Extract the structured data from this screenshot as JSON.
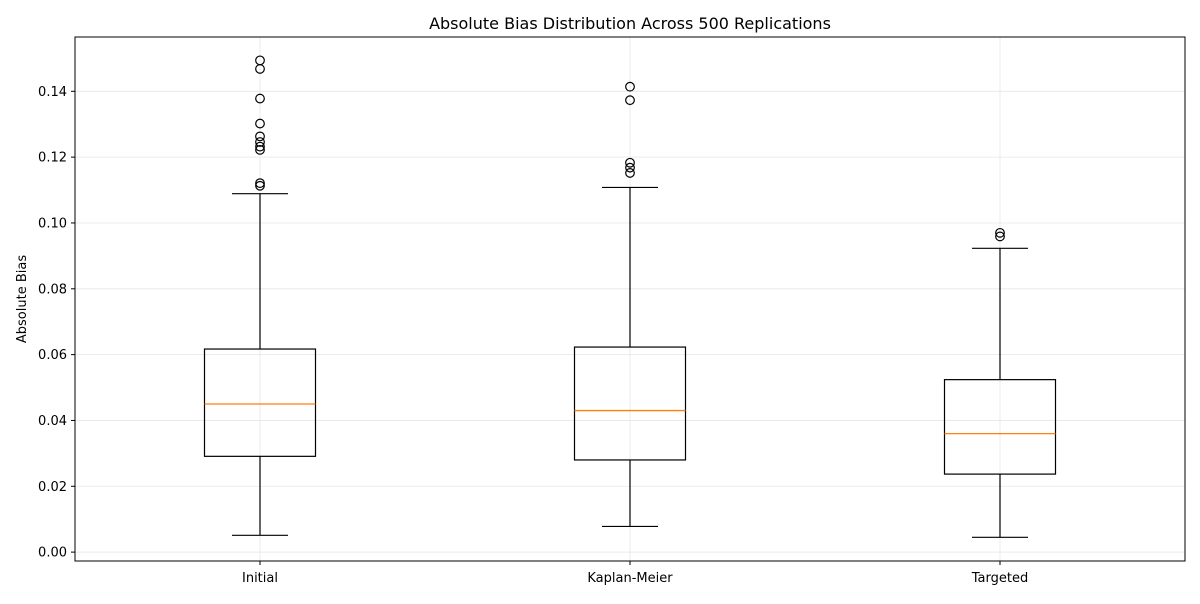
{
  "chart_data": {
    "type": "box",
    "title": "Absolute Bias Distribution Across 500 Replications",
    "xlabel": "",
    "ylabel": "Absolute Bias",
    "ylim": [
      -0.0027,
      0.1565
    ],
    "yticks": [
      0.0,
      0.02,
      0.04,
      0.06,
      0.08,
      0.1,
      0.12,
      0.14
    ],
    "ytick_labels": [
      "0.00",
      "0.02",
      "0.04",
      "0.06",
      "0.08",
      "0.10",
      "0.12",
      "0.14"
    ],
    "grid": true,
    "categories": [
      "Initial",
      "Kaplan-Meier",
      "Targeted"
    ],
    "boxes": [
      {
        "label": "Initial",
        "whisker_low": 0.0051,
        "q1": 0.0291,
        "median": 0.045,
        "q3": 0.0617,
        "whisker_high": 0.1089,
        "outliers": [
          0.1113,
          0.1121,
          0.1222,
          0.1232,
          0.1246,
          0.1263,
          0.1302,
          0.1378,
          0.1468,
          0.1494
        ]
      },
      {
        "label": "Kaplan-Meier",
        "whisker_low": 0.0078,
        "q1": 0.028,
        "median": 0.043,
        "q3": 0.0623,
        "whisker_high": 0.1108,
        "outliers": [
          0.1152,
          0.1168,
          0.1183,
          0.1373,
          0.1414
        ]
      },
      {
        "label": "Targeted",
        "whisker_low": 0.0045,
        "q1": 0.0237,
        "median": 0.036,
        "q3": 0.0524,
        "whisker_high": 0.0923,
        "outliers": [
          0.0959,
          0.097
        ]
      }
    ],
    "colors": {
      "box": "#000000",
      "median": "#ff7f0e",
      "grid": "#e6e6e6",
      "outlier": "#000000"
    }
  }
}
